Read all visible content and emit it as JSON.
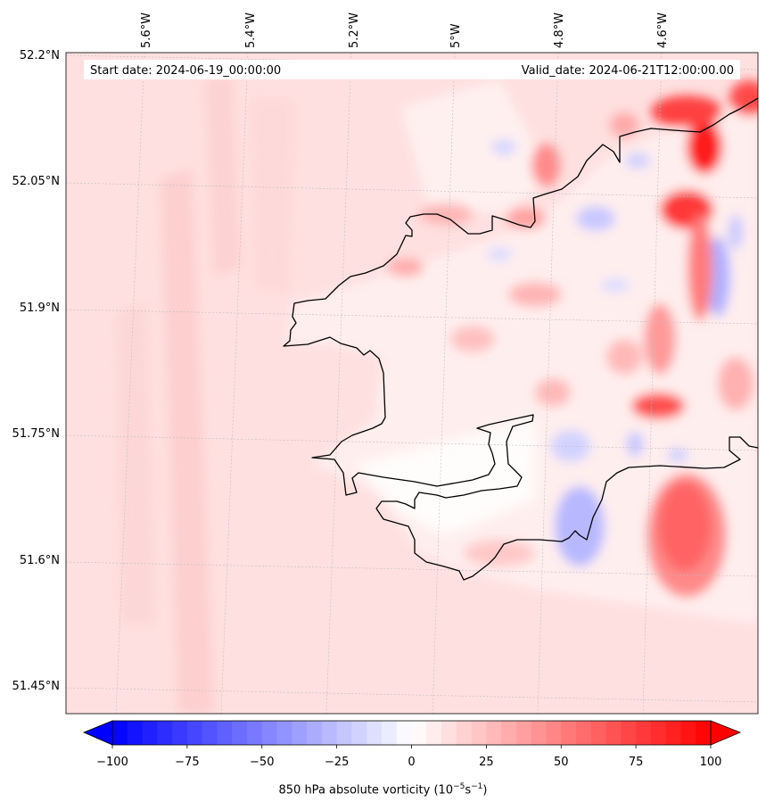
{
  "header": {
    "start_date": "Start date: 2024-06-19_00:00:00",
    "valid_date": "Valid_date: 2024-06-21T12:00:00.00"
  },
  "axes": {
    "lat_labels": [
      "52.2°N",
      "52.05°N",
      "51.9°N",
      "51.75°N",
      "51.6°N",
      "51.45°N"
    ],
    "lon_labels": [
      "5.6°W",
      "5.4°W",
      "5.2°W",
      "5°W",
      "4.8°W",
      "4.6°W"
    ]
  },
  "colorbar": {
    "label_text": "850 hPa absolute vorticity (10",
    "label_sup1": "−5",
    "label_mid": "s",
    "label_sup2": "−1",
    "label_end": ")",
    "ticks": [
      "−100",
      "−75",
      "−50",
      "−25",
      "0",
      "25",
      "50",
      "75",
      "100"
    ],
    "min": -100,
    "max": 100,
    "levels": 40,
    "extend": "both",
    "colormap": "bwr"
  },
  "colors": {
    "negative": "#0000ff",
    "zero": "#ffffff",
    "positive": "#ff0000",
    "background_field": "#ffe0e0",
    "coastline": "#000000"
  }
}
